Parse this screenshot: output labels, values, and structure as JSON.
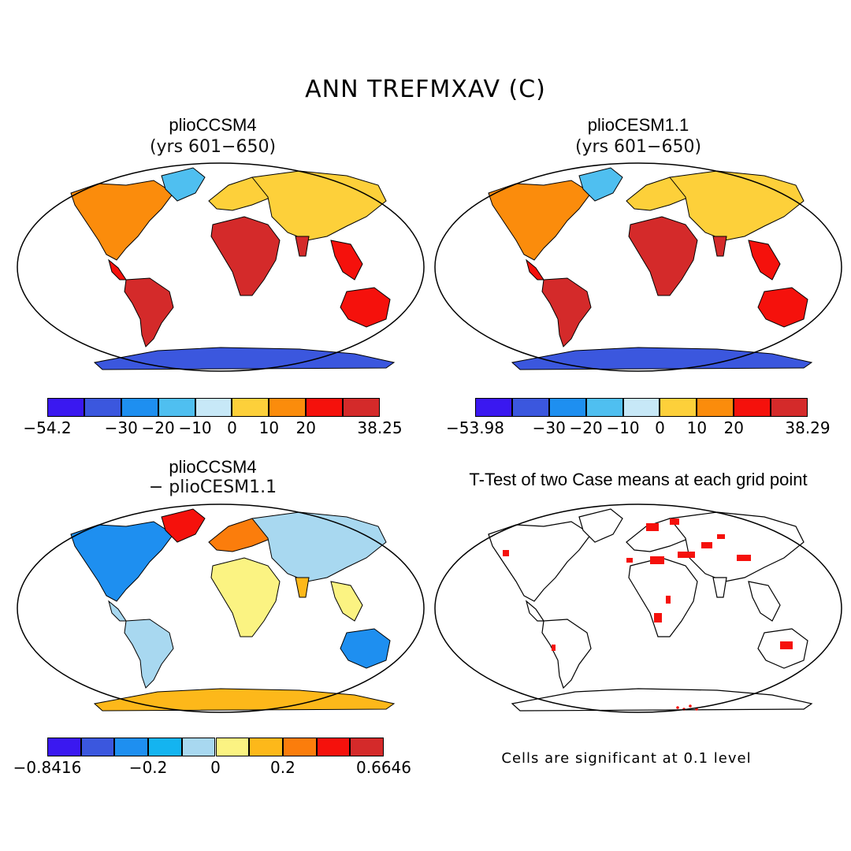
{
  "title": "ANN TREFMXAV (C)",
  "panels": {
    "top_left": {
      "title": "plioCCSM4",
      "subtitle": "(yrs 601−650)"
    },
    "top_right": {
      "title": "plioCESM1.1",
      "subtitle": "(yrs 601−650)"
    },
    "bottom_left": {
      "title": "plioCCSM4",
      "subtitle": "− plioCESM1.1"
    },
    "bottom_right": {
      "title": "T-Test of two Case means at each grid point",
      "note": "Cells are significant at 0.1 level"
    }
  },
  "colorbars": {
    "top_left": {
      "colors": [
        "#3a18f0",
        "#3b57de",
        "#1e8ff0",
        "#4fbff0",
        "#c7e8f7",
        "#fdd03a",
        "#fb8c0c",
        "#f5110c",
        "#d42a2a"
      ],
      "ticks": [
        {
          "label": "−54.2",
          "pos": 0
        },
        {
          "label": "−30",
          "pos": 2
        },
        {
          "label": "−20",
          "pos": 3
        },
        {
          "label": "−10",
          "pos": 4
        },
        {
          "label": "0",
          "pos": 5
        },
        {
          "label": "10",
          "pos": 6
        },
        {
          "label": "20",
          "pos": 7
        },
        {
          "label": "38.25",
          "pos": 9
        }
      ]
    },
    "top_right": {
      "colors": [
        "#3a18f0",
        "#3b57de",
        "#1e8ff0",
        "#4fbff0",
        "#c7e8f7",
        "#fdd03a",
        "#fb8c0c",
        "#f5110c",
        "#d42a2a"
      ],
      "ticks": [
        {
          "label": "−53.98",
          "pos": 0
        },
        {
          "label": "−30",
          "pos": 2
        },
        {
          "label": "−20",
          "pos": 3
        },
        {
          "label": "−10",
          "pos": 4
        },
        {
          "label": "0",
          "pos": 5
        },
        {
          "label": "10",
          "pos": 6
        },
        {
          "label": "20",
          "pos": 7
        },
        {
          "label": "38.29",
          "pos": 9
        }
      ]
    },
    "bottom_left": {
      "colors": [
        "#3a18f0",
        "#3b57de",
        "#1e8ff0",
        "#14b4f0",
        "#a8d8f0",
        "#fbf382",
        "#fdb81a",
        "#fb7d0c",
        "#f5110c",
        "#d42a2a"
      ],
      "ticks": [
        {
          "label": "−0.8416",
          "pos": 0
        },
        {
          "label": "−0.2",
          "pos": 3
        },
        {
          "label": "0",
          "pos": 5
        },
        {
          "label": "0.2",
          "pos": 7
        },
        {
          "label": "0.6646",
          "pos": 10
        }
      ]
    }
  }
}
